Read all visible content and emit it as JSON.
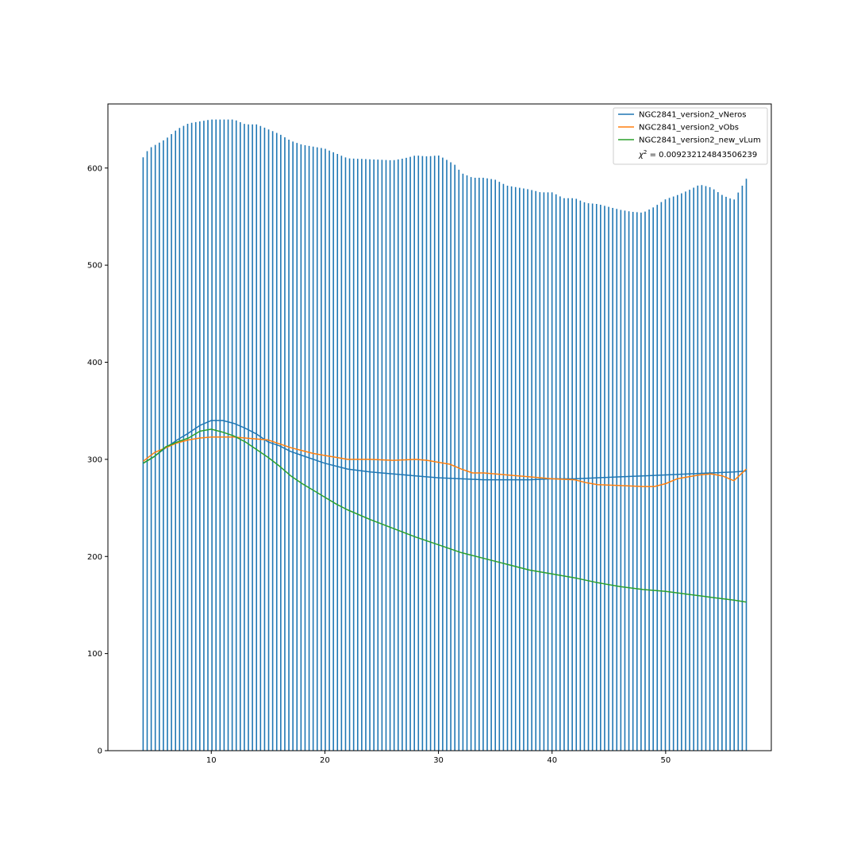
{
  "chart_data": {
    "type": "line",
    "title": "",
    "xlabel": "",
    "ylabel": "",
    "xlim": [
      0.9,
      59.3
    ],
    "ylim": [
      0,
      666
    ],
    "x_ticks": [
      10,
      20,
      30,
      40,
      50
    ],
    "y_ticks": [
      0,
      100,
      200,
      300,
      400,
      500,
      600
    ],
    "grid": false,
    "legend_position": "top-right",
    "bars": {
      "color": "#1f77b4",
      "x_start": 4.0,
      "x_end": 57.1,
      "count": 150,
      "anchors": [
        [
          4.0,
          611
        ],
        [
          4.5,
          620
        ],
        [
          6.0,
          630
        ],
        [
          7.0,
          640
        ],
        [
          8.0,
          646
        ],
        [
          9.0,
          648
        ],
        [
          10.0,
          650
        ],
        [
          12.0,
          650
        ],
        [
          13.0,
          645
        ],
        [
          14.0,
          645
        ],
        [
          15.0,
          640
        ],
        [
          16.0,
          635
        ],
        [
          17.0,
          628
        ],
        [
          18.0,
          624
        ],
        [
          20.0,
          620
        ],
        [
          21.0,
          615
        ],
        [
          22.0,
          610
        ],
        [
          24.0,
          609
        ],
        [
          26.0,
          608
        ],
        [
          27.0,
          610
        ],
        [
          28.0,
          613
        ],
        [
          29.0,
          612
        ],
        [
          30.0,
          613
        ],
        [
          30.5,
          610
        ],
        [
          31.5,
          603
        ],
        [
          32.0,
          595
        ],
        [
          33.0,
          590
        ],
        [
          34.0,
          590
        ],
        [
          35.0,
          588
        ],
        [
          36.0,
          582
        ],
        [
          38.0,
          578
        ],
        [
          39.0,
          575
        ],
        [
          40.0,
          575
        ],
        [
          41.0,
          569
        ],
        [
          42.0,
          569
        ],
        [
          43.0,
          564
        ],
        [
          44.0,
          563
        ],
        [
          45.0,
          560
        ],
        [
          46.0,
          557
        ],
        [
          47.0,
          555
        ],
        [
          48.0,
          554
        ],
        [
          49.0,
          560
        ],
        [
          50.0,
          568
        ],
        [
          51.0,
          572
        ],
        [
          52.0,
          577
        ],
        [
          53.0,
          583
        ],
        [
          54.0,
          580
        ],
        [
          55.0,
          572
        ],
        [
          56.0,
          567
        ],
        [
          57.1,
          589
        ]
      ]
    },
    "series": [
      {
        "name": "NGC2841_version2_vNeros",
        "color": "#1f77b4",
        "x": [
          4.0,
          5.0,
          6.0,
          7.0,
          8.0,
          9.0,
          10.0,
          11.0,
          12.0,
          13.0,
          14.0,
          15.0,
          16.0,
          17.0,
          18.0,
          19.0,
          20.0,
          22.0,
          24.0,
          26.0,
          28.0,
          30.0,
          32.0,
          34.0,
          36.0,
          38.0,
          40.0,
          42.0,
          44.0,
          46.0,
          48.0,
          50.0,
          52.0,
          54.0,
          56.0,
          57.1
        ],
        "y": [
          296,
          303,
          312,
          320,
          327,
          335,
          340,
          340,
          337,
          332,
          326,
          318,
          314,
          308,
          304,
          300,
          296,
          290,
          287,
          285,
          283,
          281,
          280,
          279,
          279,
          279,
          280,
          280,
          281,
          282,
          283,
          284,
          285,
          286,
          287,
          288
        ]
      },
      {
        "name": "NGC2841_version2_vObs",
        "color": "#ff7f0e",
        "x": [
          4.0,
          5.0,
          6.0,
          7.0,
          8.0,
          9.0,
          10.0,
          12.0,
          14.0,
          15.0,
          16.0,
          17.0,
          18.0,
          19.0,
          20.0,
          21.0,
          22.0,
          24.0,
          26.0,
          28.0,
          29.0,
          30.0,
          31.0,
          32.0,
          33.0,
          34.0,
          35.0,
          36.0,
          38.0,
          40.0,
          42.0,
          43.0,
          44.0,
          46.0,
          48.0,
          49.0,
          50.0,
          51.0,
          52.0,
          53.0,
          54.0,
          55.0,
          56.0,
          57.1
        ],
        "y": [
          298,
          307,
          312,
          317,
          320,
          322,
          323,
          323,
          321,
          320,
          316,
          312,
          309,
          306,
          304,
          302,
          300,
          300,
          299,
          300,
          299,
          297,
          295,
          290,
          286,
          286,
          285,
          284,
          282,
          280,
          279,
          276,
          274,
          273,
          272,
          272,
          275,
          280,
          282,
          284,
          285,
          283,
          278,
          290
        ]
      },
      {
        "name": "NGC2841_version2_new_vLum",
        "color": "#2ca02c",
        "x": [
          4.0,
          5.0,
          6.0,
          7.0,
          8.0,
          9.0,
          10.0,
          11.0,
          12.0,
          13.0,
          14.0,
          15.0,
          16.0,
          17.0,
          18.0,
          19.0,
          20.0,
          21.0,
          22.0,
          24.0,
          26.0,
          28.0,
          30.0,
          32.0,
          34.0,
          36.0,
          38.0,
          40.0,
          42.0,
          44.0,
          46.0,
          48.0,
          50.0,
          52.0,
          54.0,
          56.0,
          57.1
        ],
        "y": [
          296,
          303,
          313,
          318,
          322,
          329,
          331,
          328,
          324,
          318,
          310,
          302,
          293,
          283,
          275,
          268,
          261,
          254,
          248,
          238,
          229,
          220,
          212,
          204,
          198,
          192,
          186,
          182,
          178,
          173,
          169,
          166,
          164,
          161,
          158,
          155,
          153
        ]
      }
    ],
    "legend": {
      "entries": [
        {
          "label": "NGC2841_version2_vNeros",
          "color": "#1f77b4"
        },
        {
          "label": "NGC2841_version2_vObs",
          "color": "#ff7f0e"
        },
        {
          "label": "NGC2841_version2_new_vLum",
          "color": "#2ca02c"
        }
      ],
      "chi_symbol": "χ",
      "chi_exponent": "2",
      "chi_value": " = 0.009232124843506239"
    }
  }
}
